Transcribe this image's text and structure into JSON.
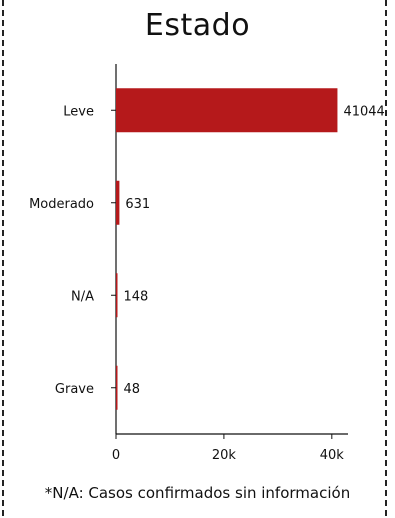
{
  "chart_data": {
    "type": "bar",
    "orientation": "horizontal",
    "title": "Estado",
    "categories": [
      "Leve",
      "Moderado",
      "N/A",
      "Grave"
    ],
    "values": [
      41044,
      631,
      148,
      48
    ],
    "data_labels": [
      "41044",
      "631",
      "148",
      "48"
    ],
    "xlim": [
      0,
      43000
    ],
    "xticks": [
      0,
      20000,
      40000
    ],
    "xtick_labels": [
      "0",
      "20k",
      "40k"
    ],
    "grid": false,
    "bar_color": "#b5191b",
    "footnote": "*N/A: Casos confirmados sin información"
  }
}
